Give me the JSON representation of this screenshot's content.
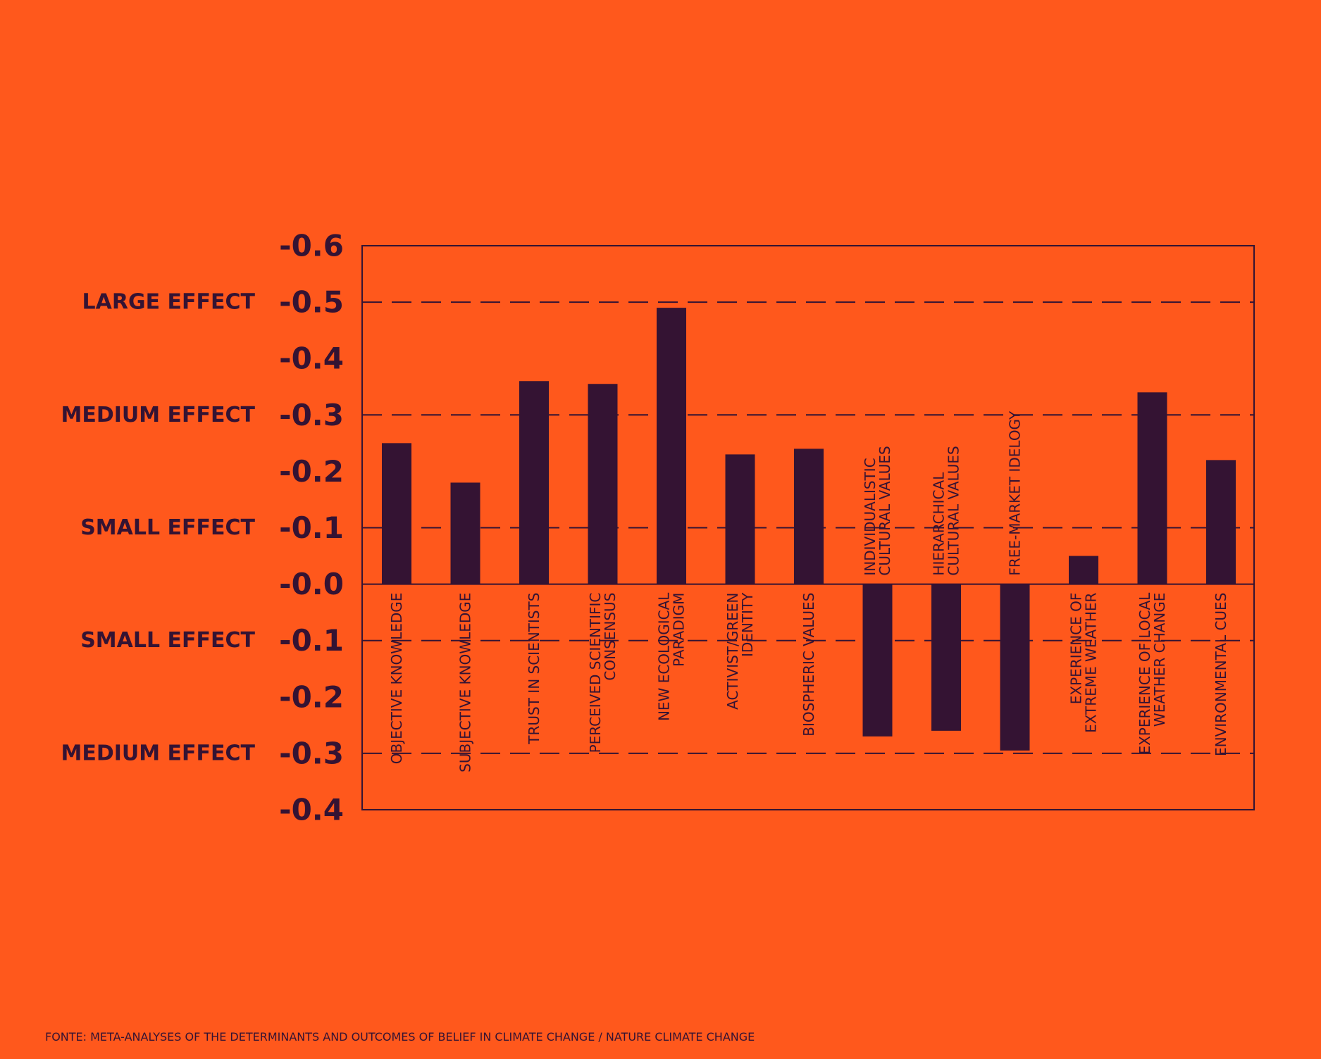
{
  "source": "FONTE: META-ANALYSES OF THE DETERMINANTS AND OUTCOMES OF BELIEF IN CLIMATE CHANGE / NATURE CLIMATE CHANGE",
  "colors": {
    "background": "#FF581C",
    "bar": "#341333",
    "text": "#341333"
  },
  "chart_data": {
    "type": "bar",
    "title": "",
    "xlabel": "",
    "ylabel": "",
    "ylim": [
      -0.4,
      0.6
    ],
    "y_ticks": [
      {
        "value": 0.6,
        "label": "-0.6"
      },
      {
        "value": 0.5,
        "label": "-0.5"
      },
      {
        "value": 0.4,
        "label": "-0.4"
      },
      {
        "value": 0.3,
        "label": "-0.3"
      },
      {
        "value": 0.2,
        "label": "-0.2"
      },
      {
        "value": 0.1,
        "label": "-0.1"
      },
      {
        "value": 0.0,
        "label": "-0.0"
      },
      {
        "value": -0.1,
        "label": "-0.1"
      },
      {
        "value": -0.2,
        "label": "-0.2"
      },
      {
        "value": -0.3,
        "label": "-0.3"
      },
      {
        "value": -0.4,
        "label": "-0.4"
      }
    ],
    "effect_labels": [
      {
        "value": 0.5,
        "label": "LARGE EFFECT"
      },
      {
        "value": 0.3,
        "label": "MEDIUM EFFECT"
      },
      {
        "value": 0.1,
        "label": "SMALL EFFECT"
      },
      {
        "value": -0.1,
        "label": "SMALL EFFECT"
      },
      {
        "value": -0.3,
        "label": "MEDIUM EFFECT"
      }
    ],
    "dashed_gridlines": [
      0.5,
      0.3,
      0.1,
      -0.1,
      -0.3
    ],
    "grid": false,
    "legend": "none",
    "categories": [
      [
        "OBJECTIVE KNOWLEDGE"
      ],
      [
        "SUBJECTIVE KNOWLEDGE"
      ],
      [
        "TRUST IN SCIENTISTS"
      ],
      [
        "PERCEIVED SCIENTIFIC",
        "CONSENSUS"
      ],
      [
        "NEW ECOLOGICAL",
        "PARADIGM"
      ],
      [
        "ACTIVIST/GREEN",
        "IDENTITY"
      ],
      [
        "BIOSPHERIC VALUES"
      ],
      [
        "INDIVIDUALISTIC",
        "CULTURAL VALUES"
      ],
      [
        "HIERARCHICAL",
        "CULTURAL VALUES"
      ],
      [
        "FREE-MARKET IDELOGY"
      ],
      [
        "EXPERIENCE OF",
        "EXTREME WEATHER"
      ],
      [
        "EXPERIENCE OF LOCAL",
        "WEATHER CHANGE"
      ],
      [
        "ENVIRONMENTAL CUES"
      ]
    ],
    "values": [
      0.25,
      0.18,
      0.36,
      0.355,
      0.49,
      0.23,
      0.24,
      -0.27,
      -0.26,
      -0.295,
      0.05,
      0.34,
      0.22
    ]
  }
}
